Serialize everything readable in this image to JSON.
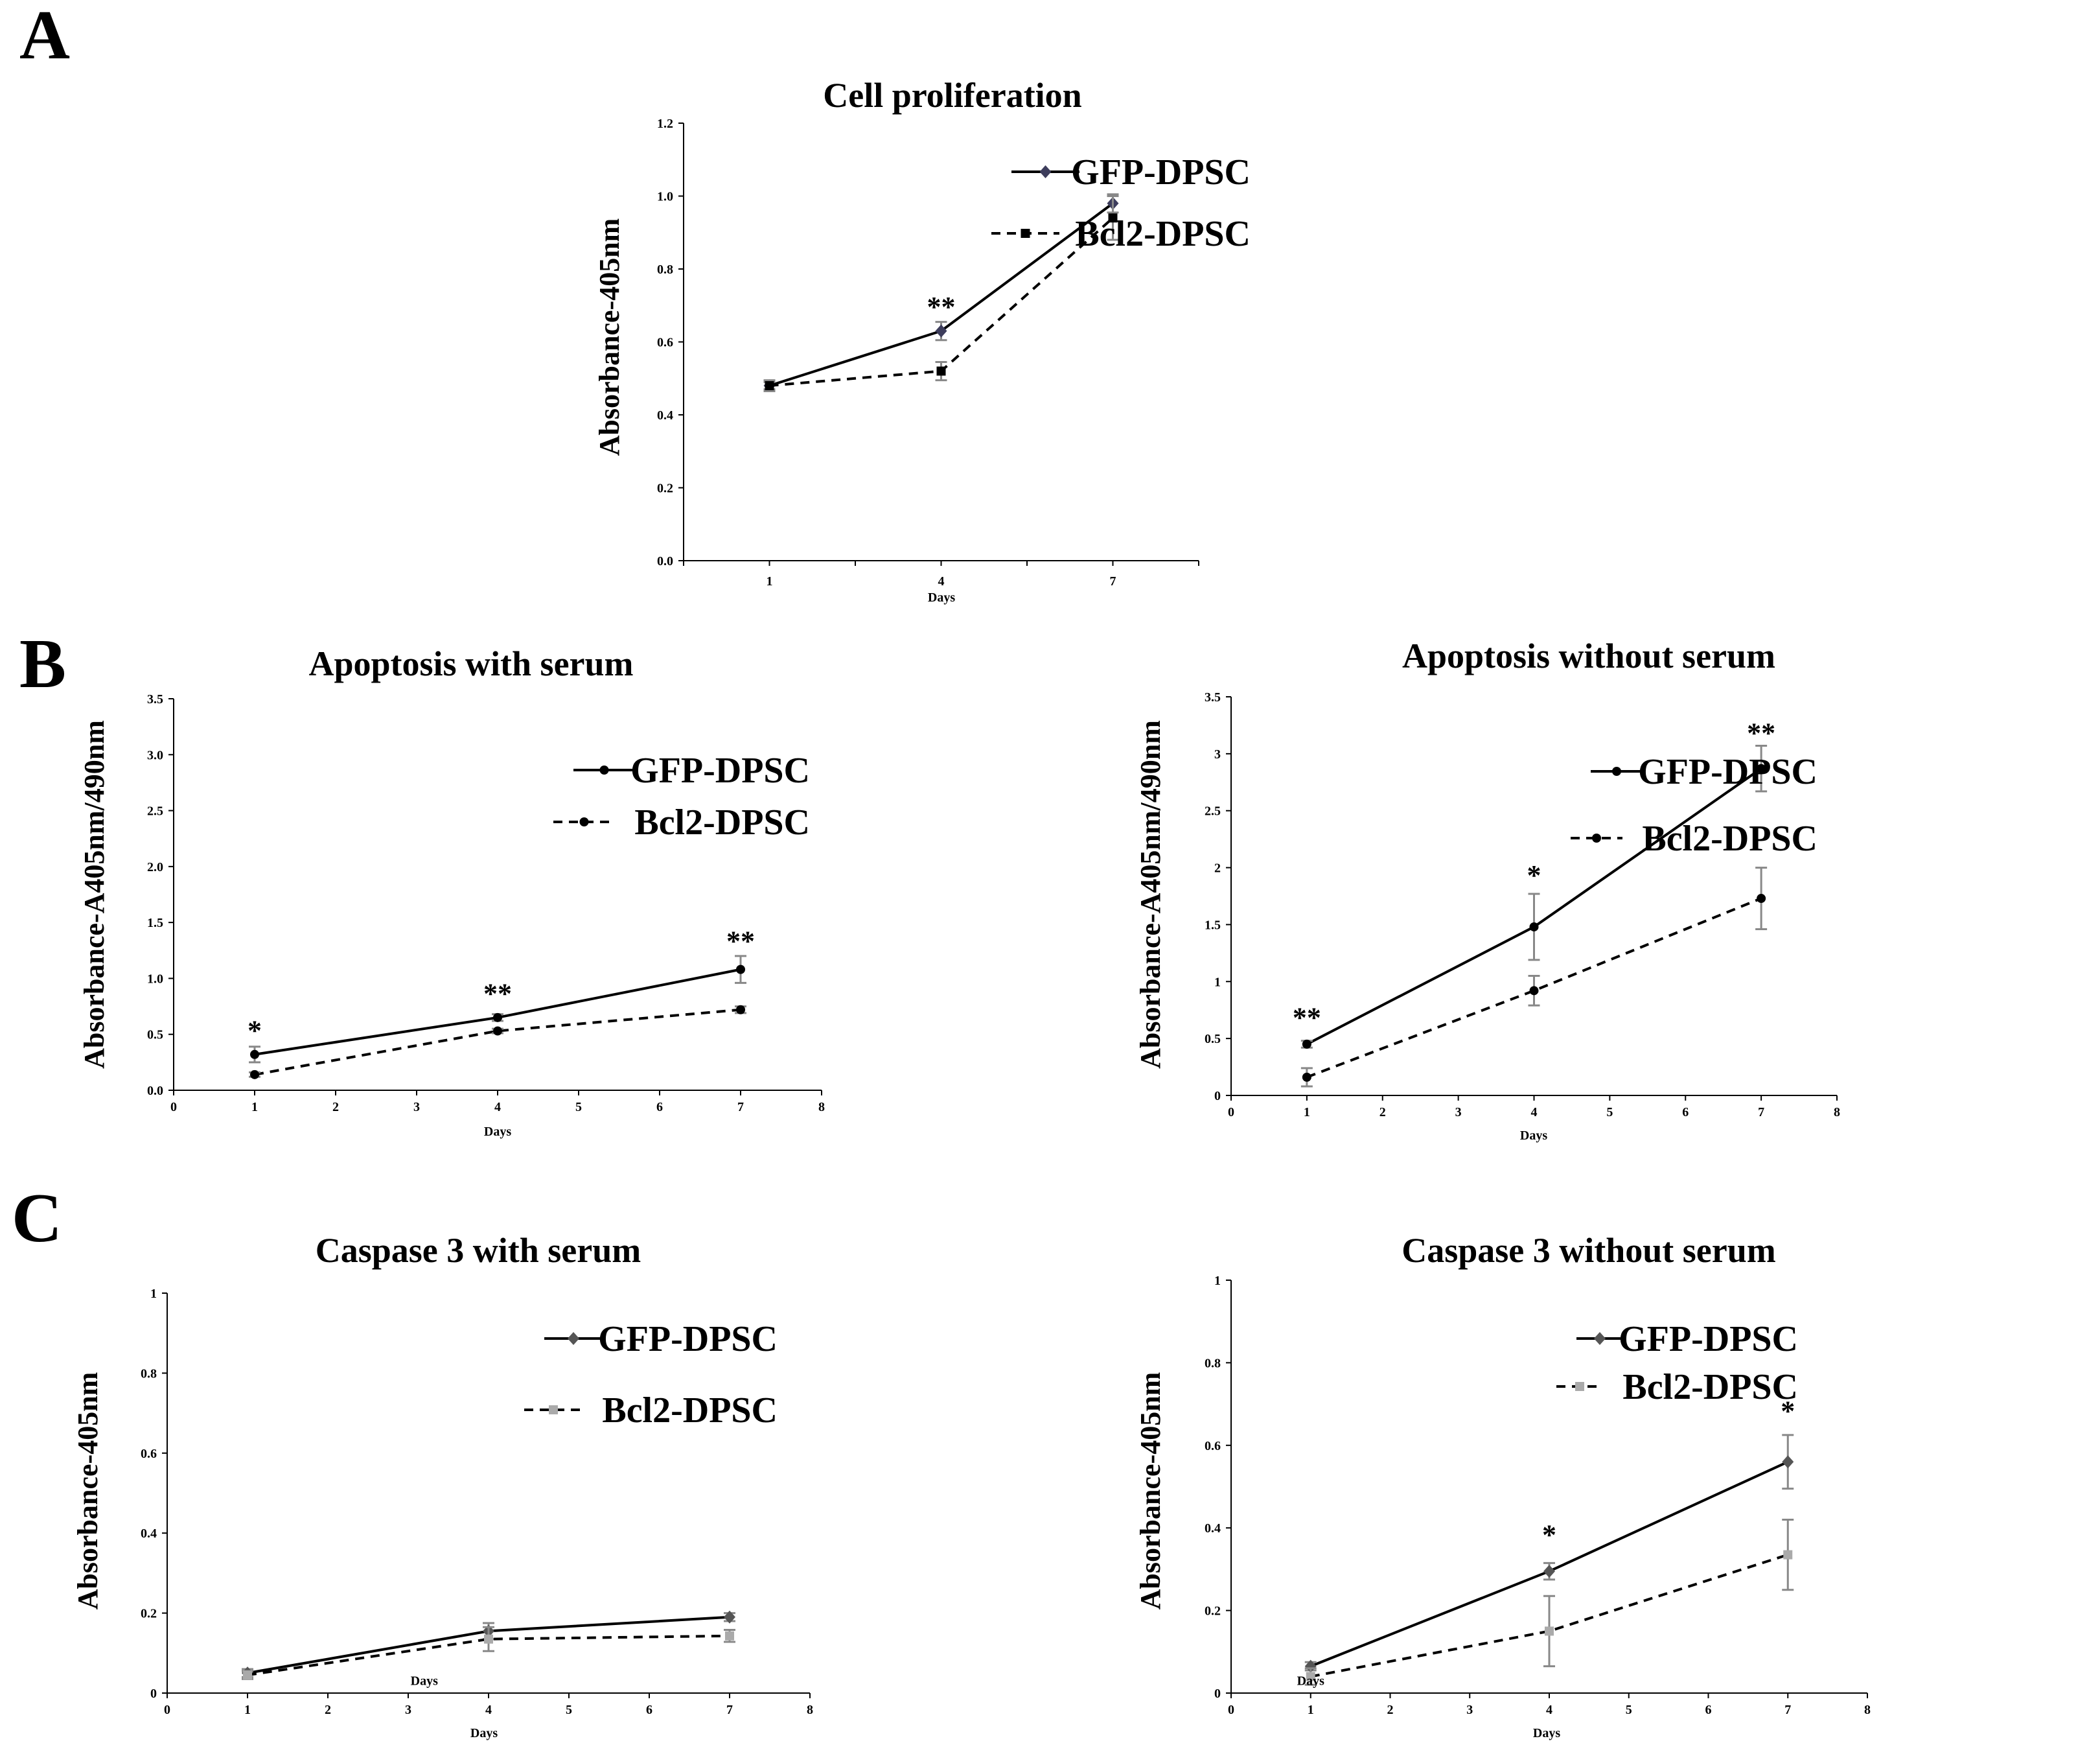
{
  "panels": [
    "A",
    "B",
    "C"
  ],
  "chart_data": [
    {
      "type": "line",
      "title": "Cell proliferation",
      "xlabel": "Days",
      "ylabel": "Absorbance-405nm",
      "x_axis_kind": "category",
      "categories": [
        "1",
        "4",
        "7"
      ],
      "x": [
        1,
        4,
        7
      ],
      "ylim": [
        0,
        1.2
      ],
      "yticks": [
        "0.0",
        "0.2",
        "0.4",
        "0.6",
        "0.8",
        "1.0",
        "1.2"
      ],
      "series": [
        {
          "name": "GFP-DPSC",
          "values": [
            0.48,
            0.63,
            0.98
          ],
          "errors": [
            0.01,
            0.025,
            0.025
          ],
          "color": "#3d3d5c",
          "dash": "solid",
          "marker": "diamond"
        },
        {
          "name": "Bcl2-DPSC",
          "values": [
            0.48,
            0.52,
            0.94
          ],
          "errors": [
            0.015,
            0.025,
            0.06
          ],
          "color": "#000000",
          "dash": "dashed",
          "marker": "square"
        }
      ],
      "annotations": [
        {
          "x": 4,
          "y": 0.67,
          "text": "**"
        }
      ]
    },
    {
      "type": "line",
      "title": "Apoptosis with serum",
      "xlabel": "Days",
      "ylabel": "Absorbance-A405nm/490nm",
      "x_axis_kind": "numeric",
      "xticks": [
        "0",
        "1",
        "2",
        "3",
        "4",
        "5",
        "6",
        "7",
        "8"
      ],
      "xlim": [
        0,
        8
      ],
      "ylim": [
        0,
        3.5
      ],
      "yticks": [
        "0.0",
        "0.5",
        "1.0",
        "1.5",
        "2.0",
        "2.5",
        "3.0",
        "3.5"
      ],
      "series": [
        {
          "name": "GFP-DPSC",
          "x": [
            1,
            4,
            7
          ],
          "values": [
            0.32,
            0.65,
            1.08
          ],
          "errors": [
            0.07,
            0.03,
            0.12
          ],
          "color": "#000000",
          "dash": "solid",
          "marker": "circle"
        },
        {
          "name": "Bcl2-DPSC",
          "x": [
            1,
            4,
            7
          ],
          "values": [
            0.14,
            0.53,
            0.72
          ],
          "errors": [
            0.02,
            0.02,
            0.03
          ],
          "color": "#000000",
          "dash": "dashed",
          "marker": "circle"
        }
      ],
      "annotations": [
        {
          "x": 1,
          "y": 0.45,
          "text": "*"
        },
        {
          "x": 4,
          "y": 0.78,
          "text": "**"
        },
        {
          "x": 7,
          "y": 1.25,
          "text": "**"
        }
      ]
    },
    {
      "type": "line",
      "title": "Apoptosis without serum",
      "xlabel": "Days",
      "ylabel": "Absorbance-A405nm/490nm",
      "x_axis_kind": "numeric",
      "xticks": [
        "0",
        "1",
        "2",
        "3",
        "4",
        "5",
        "6",
        "7",
        "8"
      ],
      "xlim": [
        0,
        8
      ],
      "ylim": [
        0,
        3.5
      ],
      "yticks": [
        "0",
        "0.5",
        "1",
        "1.5",
        "2",
        "2.5",
        "3",
        "3.5"
      ],
      "series": [
        {
          "name": "GFP-DPSC",
          "x": [
            1,
            4,
            7
          ],
          "values": [
            0.45,
            1.48,
            2.87
          ],
          "errors": [
            0.03,
            0.29,
            0.2
          ],
          "color": "#000000",
          "dash": "solid",
          "marker": "circle"
        },
        {
          "name": "Bcl2-DPSC",
          "x": [
            1,
            4,
            7
          ],
          "values": [
            0.16,
            0.92,
            1.73
          ],
          "errors": [
            0.08,
            0.13,
            0.27
          ],
          "color": "#000000",
          "dash": "dashed",
          "marker": "circle"
        }
      ],
      "annotations": [
        {
          "x": 1,
          "y": 0.6,
          "text": "**"
        },
        {
          "x": 4,
          "y": 1.85,
          "text": "*"
        },
        {
          "x": 7,
          "y": 3.1,
          "text": "**"
        }
      ]
    },
    {
      "type": "line",
      "title": "Caspase 3 with serum",
      "xlabel": "Days",
      "ylabel": "Absorbance-405nm",
      "x_axis_kind": "numeric",
      "xticks": [
        "0",
        "1",
        "2",
        "3",
        "4",
        "5",
        "6",
        "7",
        "8"
      ],
      "xlim": [
        0,
        8
      ],
      "ylim": [
        0,
        1
      ],
      "yticks": [
        "0",
        "0.2",
        "0.4",
        "0.6",
        "0.8",
        "1"
      ],
      "series": [
        {
          "name": "GFP-DPSC",
          "x": [
            1,
            4,
            7
          ],
          "values": [
            0.05,
            0.155,
            0.19
          ],
          "errors": [
            0.01,
            0.02,
            0.01
          ],
          "color": "#555555",
          "dash": "solid",
          "marker": "diamond"
        },
        {
          "name": "Bcl2-DPSC",
          "x": [
            1,
            4,
            7
          ],
          "values": [
            0.045,
            0.135,
            0.143
          ],
          "errors": [
            0.01,
            0.03,
            0.015
          ],
          "color": "#aaaaaa",
          "dash": "dashed",
          "marker": "square",
          "line_color": "#000000"
        }
      ],
      "annotations": [],
      "stray_text": [
        {
          "x": 3.2,
          "y": 0.02,
          "text": "Days"
        }
      ]
    },
    {
      "type": "line",
      "title": "Caspase 3 without serum",
      "xlabel": "Days",
      "ylabel": "Absorbance-405nm",
      "x_axis_kind": "numeric",
      "xticks": [
        "0",
        "1",
        "2",
        "3",
        "4",
        "5",
        "6",
        "7",
        "8"
      ],
      "xlim": [
        0,
        8
      ],
      "ylim": [
        0,
        1
      ],
      "yticks": [
        "0",
        "0.2",
        "0.4",
        "0.6",
        "0.8",
        "1"
      ],
      "series": [
        {
          "name": "GFP-DPSC",
          "x": [
            1,
            4,
            7
          ],
          "values": [
            0.065,
            0.295,
            0.56
          ],
          "errors": [
            0.01,
            0.02,
            0.065
          ],
          "color": "#555555",
          "dash": "solid",
          "marker": "diamond"
        },
        {
          "name": "Bcl2-DPSC",
          "x": [
            1,
            4,
            7
          ],
          "values": [
            0.04,
            0.15,
            0.335
          ],
          "errors": [
            0.02,
            0.085,
            0.085
          ],
          "color": "#aaaaaa",
          "dash": "dashed",
          "marker": "square",
          "line_color": "#000000"
        }
      ],
      "annotations": [
        {
          "x": 4,
          "y": 0.36,
          "text": "*"
        },
        {
          "x": 7,
          "y": 0.66,
          "text": "*"
        }
      ],
      "stray_text": [
        {
          "x": 1.0,
          "y": 0.02,
          "text": "Days"
        }
      ]
    }
  ]
}
